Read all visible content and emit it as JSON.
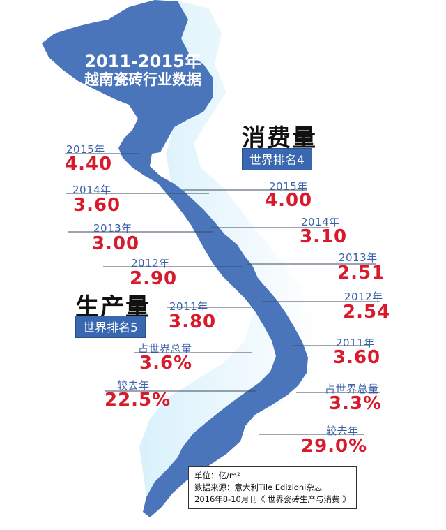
{
  "title": {
    "line1": "2011-2015年",
    "line2": "越南瓷砖行业数据"
  },
  "consumption": {
    "heading": "消费量",
    "rank": "世界排名4",
    "entries": [
      {
        "year": "2015年",
        "value": "4.00"
      },
      {
        "year": "2014年",
        "value": "3.10"
      },
      {
        "year": "2013年",
        "value": "2.51"
      },
      {
        "year": "2012年",
        "value": "2.54"
      },
      {
        "year": "2011年",
        "value": "3.60"
      }
    ],
    "share_label": "占世界总量",
    "share_value": "3.3%",
    "growth_label": "较去年",
    "growth_value": "29.0%"
  },
  "production": {
    "heading": "生产量",
    "rank": "世界排名5",
    "entries": [
      {
        "year": "2015年",
        "value": "4.40"
      },
      {
        "year": "2014年",
        "value": "3.60"
      },
      {
        "year": "2013年",
        "value": "3.00"
      },
      {
        "year": "2012年",
        "value": "2.90"
      },
      {
        "year": "2011年",
        "value": "3.80"
      }
    ],
    "share_label": "占世界总量",
    "share_value": "3.6%",
    "growth_label": "较去年",
    "growth_value": "22.5%"
  },
  "note": {
    "unit": "单位：亿/m²",
    "source": "数据来源：意大利Tile Edizioni杂志",
    "publication": "2016年8-10月刊《 世界瓷砖生产与消费 》"
  },
  "colors": {
    "map_fill": "#4a75bb",
    "shadow": "#bfe3f5",
    "value_red": "#d9192c",
    "year_blue": "#3a61a8"
  }
}
